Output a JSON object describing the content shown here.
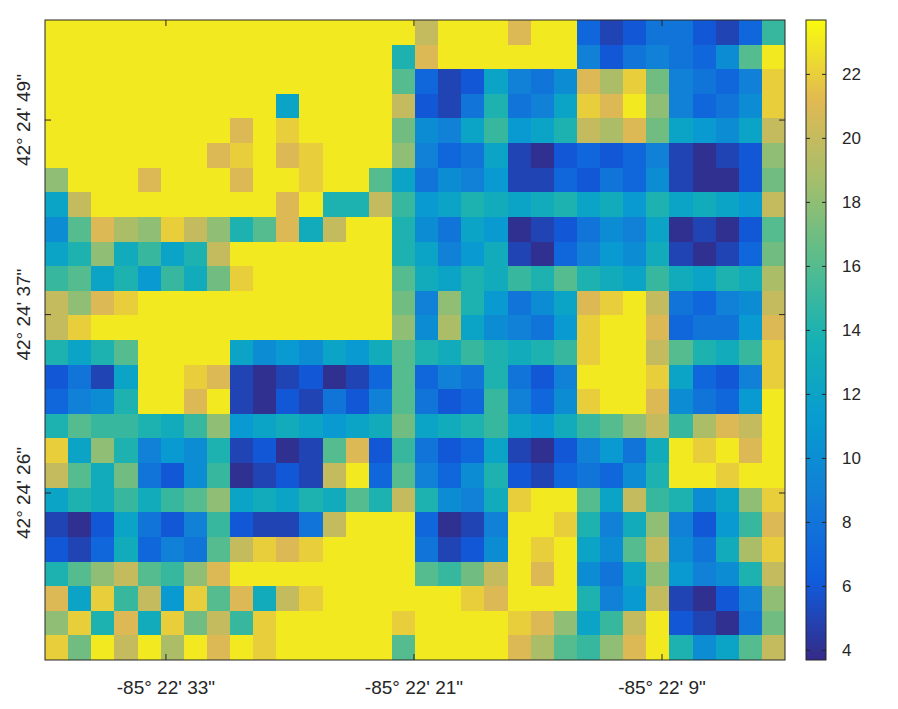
{
  "chart_data": {
    "type": "heatmap",
    "xlim": [
      -85.377458,
      -85.367514
    ],
    "ylim": [
      42.404361,
      42.415325
    ],
    "xticks": [
      {
        "value": -85.375833,
        "label": "-85° 22' 33\""
      },
      {
        "value": -85.3725,
        "label": "-85° 22' 21\""
      },
      {
        "value": -85.369167,
        "label": "-85° 22' 9\""
      }
    ],
    "yticks": [
      {
        "value": 42.407222,
        "label": "42° 24' 26\""
      },
      {
        "value": 42.410278,
        "label": "42° 24' 37\""
      },
      {
        "value": 42.413611,
        "label": "42° 24' 49\""
      }
    ],
    "colorbar": {
      "range": [
        3.7,
        23.7
      ],
      "ticks": [
        4,
        6,
        8,
        10,
        12,
        14,
        16,
        18,
        20,
        22
      ]
    },
    "cells": [
      [
        23,
        23,
        23,
        23,
        23,
        23,
        23,
        23,
        23,
        23,
        23,
        23,
        23,
        23,
        23,
        23,
        20,
        23,
        23,
        23,
        21,
        23,
        23,
        7,
        5,
        6,
        8,
        8,
        6,
        5,
        7,
        15
      ],
      [
        23,
        23,
        23,
        23,
        23,
        23,
        23,
        23,
        23,
        23,
        23,
        23,
        23,
        23,
        23,
        14,
        21,
        23,
        23,
        23,
        23,
        23,
        23,
        9,
        6,
        8,
        9,
        8,
        7,
        10,
        16,
        23
      ],
      [
        23,
        23,
        23,
        23,
        23,
        23,
        23,
        23,
        23,
        23,
        23,
        23,
        23,
        23,
        23,
        16,
        7,
        5,
        6,
        12,
        9,
        8,
        10,
        21,
        19,
        22,
        17,
        9,
        8,
        7,
        9,
        22
      ],
      [
        23,
        23,
        23,
        23,
        23,
        23,
        23,
        23,
        23,
        23,
        12,
        23,
        23,
        23,
        23,
        20,
        6,
        5,
        8,
        14,
        8,
        9,
        12,
        22,
        21,
        23,
        18,
        9,
        7,
        8,
        10,
        22
      ],
      [
        23,
        23,
        23,
        23,
        23,
        23,
        23,
        23,
        21,
        23,
        22,
        23,
        23,
        23,
        23,
        17,
        10,
        9,
        12,
        15,
        11,
        12,
        14,
        20,
        19,
        21,
        17,
        12,
        11,
        10,
        12,
        20
      ],
      [
        23,
        23,
        23,
        23,
        23,
        23,
        23,
        21,
        22,
        23,
        21,
        22,
        23,
        23,
        23,
        18,
        9,
        7,
        8,
        12,
        5,
        4,
        6,
        7,
        6,
        7,
        9,
        5,
        4,
        5,
        6,
        18
      ],
      [
        18,
        23,
        23,
        23,
        21,
        23,
        23,
        23,
        21,
        23,
        23,
        22,
        23,
        23,
        16,
        12,
        8,
        10,
        9,
        11,
        5,
        5,
        7,
        6,
        8,
        7,
        10,
        5,
        4,
        4,
        6,
        17
      ],
      [
        12,
        20,
        23,
        23,
        23,
        23,
        23,
        23,
        23,
        23,
        21,
        23,
        14,
        14,
        20,
        15,
        11,
        12,
        14,
        13,
        12,
        13,
        14,
        12,
        13,
        11,
        14,
        12,
        13,
        12,
        11,
        20
      ],
      [
        10,
        16,
        21,
        19,
        18,
        22,
        20,
        18,
        14,
        16,
        21,
        13,
        20,
        23,
        23,
        14,
        10,
        8,
        12,
        11,
        4,
        5,
        6,
        8,
        10,
        9,
        12,
        4,
        5,
        4,
        6,
        16
      ],
      [
        12,
        14,
        18,
        13,
        15,
        12,
        14,
        20,
        23,
        23,
        23,
        23,
        23,
        23,
        23,
        14,
        12,
        9,
        11,
        13,
        5,
        4,
        7,
        9,
        11,
        10,
        13,
        5,
        4,
        5,
        7,
        17
      ],
      [
        15,
        16,
        12,
        14,
        11,
        15,
        13,
        17,
        22,
        23,
        23,
        23,
        23,
        23,
        23,
        16,
        13,
        12,
        14,
        13,
        15,
        14,
        16,
        14,
        13,
        12,
        15,
        13,
        12,
        14,
        13,
        19
      ],
      [
        20,
        18,
        21,
        22,
        23,
        23,
        23,
        23,
        23,
        23,
        23,
        23,
        23,
        23,
        23,
        17,
        9,
        18,
        14,
        11,
        8,
        10,
        12,
        21,
        22,
        23,
        20,
        8,
        7,
        9,
        10,
        20
      ],
      [
        20,
        22,
        23,
        23,
        23,
        23,
        23,
        23,
        23,
        23,
        23,
        23,
        23,
        23,
        23,
        18,
        10,
        19,
        12,
        10,
        9,
        8,
        11,
        22,
        23,
        23,
        21,
        7,
        8,
        8,
        11,
        21
      ],
      [
        14,
        12,
        14,
        16,
        23,
        23,
        23,
        23,
        12,
        10,
        11,
        10,
        12,
        11,
        13,
        16,
        14,
        13,
        15,
        14,
        13,
        14,
        15,
        22,
        23,
        23,
        20,
        16,
        14,
        13,
        15,
        22
      ],
      [
        6,
        8,
        5,
        12,
        23,
        23,
        22,
        21,
        5,
        4,
        5,
        6,
        4,
        5,
        7,
        16,
        7,
        9,
        8,
        14,
        8,
        6,
        9,
        23,
        23,
        23,
        22,
        12,
        7,
        6,
        9,
        22
      ],
      [
        7,
        9,
        10,
        14,
        23,
        23,
        21,
        23,
        5,
        4,
        6,
        5,
        8,
        6,
        9,
        16,
        8,
        6,
        7,
        15,
        9,
        7,
        10,
        22,
        23,
        23,
        21,
        10,
        8,
        7,
        11,
        23
      ],
      [
        14,
        16,
        15,
        15,
        14,
        13,
        15,
        18,
        11,
        12,
        13,
        12,
        11,
        12,
        13,
        17,
        12,
        13,
        14,
        15,
        12,
        11,
        13,
        15,
        16,
        18,
        20,
        15,
        19,
        21,
        20,
        23
      ],
      [
        22,
        12,
        18,
        14,
        9,
        11,
        10,
        14,
        5,
        6,
        4,
        5,
        16,
        21,
        6,
        15,
        8,
        6,
        7,
        12,
        5,
        4,
        6,
        9,
        11,
        8,
        13,
        23,
        22,
        23,
        21,
        23
      ],
      [
        20,
        16,
        13,
        17,
        8,
        6,
        10,
        15,
        4,
        5,
        6,
        5,
        20,
        23,
        7,
        16,
        9,
        7,
        10,
        14,
        6,
        5,
        7,
        8,
        7,
        10,
        14,
        23,
        23,
        22,
        23,
        23
      ],
      [
        12,
        14,
        13,
        15,
        13,
        15,
        16,
        18,
        12,
        13,
        12,
        14,
        13,
        16,
        14,
        20,
        14,
        10,
        9,
        13,
        22,
        23,
        23,
        16,
        12,
        20,
        15,
        14,
        10,
        12,
        18,
        22
      ],
      [
        5,
        4,
        6,
        12,
        8,
        6,
        9,
        15,
        6,
        5,
        5,
        8,
        20,
        23,
        23,
        23,
        7,
        4,
        5,
        9,
        23,
        23,
        22,
        14,
        9,
        13,
        18,
        9,
        6,
        11,
        15,
        21
      ],
      [
        6,
        5,
        7,
        13,
        7,
        9,
        8,
        16,
        20,
        22,
        21,
        22,
        23,
        23,
        23,
        23,
        8,
        5,
        6,
        10,
        23,
        22,
        23,
        12,
        10,
        16,
        20,
        10,
        8,
        13,
        19,
        22
      ],
      [
        14,
        16,
        18,
        20,
        16,
        15,
        18,
        21,
        23,
        23,
        23,
        23,
        23,
        23,
        23,
        23,
        16,
        15,
        17,
        20,
        23,
        21,
        23,
        10,
        8,
        12,
        18,
        11,
        9,
        10,
        14,
        20
      ],
      [
        21,
        12,
        22,
        15,
        20,
        11,
        22,
        16,
        21,
        13,
        20,
        22,
        23,
        23,
        23,
        23,
        23,
        23,
        22,
        21,
        23,
        23,
        23,
        14,
        9,
        11,
        20,
        5,
        4,
        6,
        9,
        18
      ],
      [
        18,
        22,
        14,
        21,
        13,
        22,
        17,
        20,
        15,
        22,
        23,
        23,
        23,
        23,
        23,
        22,
        23,
        23,
        23,
        23,
        22,
        21,
        18,
        12,
        15,
        20,
        23,
        6,
        5,
        4,
        8,
        17
      ],
      [
        22,
        17,
        23,
        20,
        23,
        19,
        23,
        21,
        23,
        22,
        23,
        23,
        23,
        23,
        23,
        16,
        23,
        23,
        23,
        23,
        21,
        19,
        16,
        15,
        18,
        21,
        23,
        14,
        10,
        12,
        16,
        20
      ]
    ]
  }
}
